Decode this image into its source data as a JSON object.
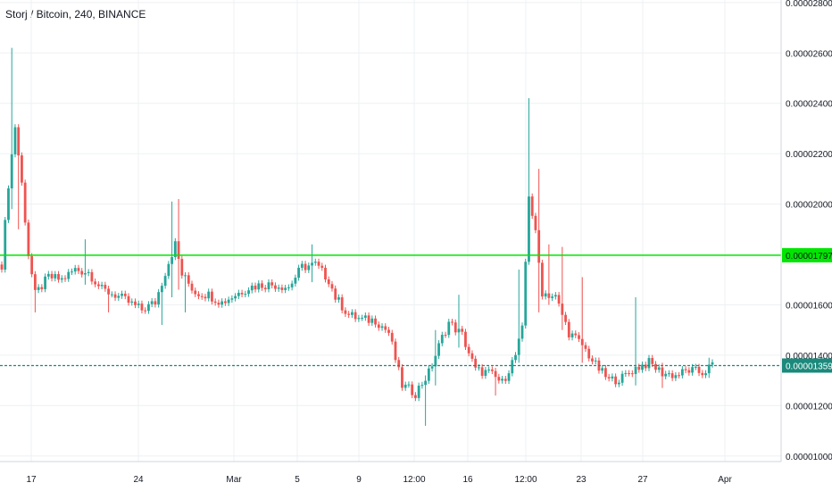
{
  "header": {
    "title": "Storj / Bitcoin, 240, BINANCE"
  },
  "colors": {
    "up": "#26a69a",
    "down": "#ef5350",
    "grid": "#eef0f3",
    "axis_text": "#131722",
    "resistance_line": "#00e600",
    "current_price_line": "#1b8a7c",
    "current_price_bg": "#1b8a7c",
    "resistance_bg": "#00e600"
  },
  "chart_data": {
    "type": "candlestick",
    "title": "Storj / Bitcoin, 240, BINANCE",
    "y_range": [
      9.78e-06,
      2.81e-05
    ],
    "y_ticks": [
      "0.00002800",
      "0.00002600",
      "0.00002400",
      "0.00002200",
      "0.00002000",
      "0.00001600",
      "0.00001400",
      "0.00001200",
      "0.00001000"
    ],
    "x_tick_labels": [
      "17",
      "24",
      "Mar",
      "5",
      "9",
      "12:00",
      "16",
      "12:00",
      "23",
      "27",
      "Apr"
    ],
    "horizontal_lines": [
      {
        "label": "0.00001797",
        "value": 1.797e-05,
        "style": "solid"
      },
      {
        "label": "0.00001359",
        "value": 1.359e-05,
        "style": "dashed"
      }
    ],
    "anchors": [
      [
        0,
        1.76e-05
      ],
      [
        2,
        2.08e-05
      ],
      [
        4,
        2.31e-05
      ],
      [
        6,
        2.08e-05
      ],
      [
        8,
        1.8e-05
      ],
      [
        10,
        1.64e-05
      ],
      [
        14,
        1.71e-05
      ],
      [
        18,
        1.7e-05
      ],
      [
        22,
        1.74e-05
      ],
      [
        26,
        1.73e-05
      ],
      [
        30,
        1.66e-05
      ],
      [
        34,
        1.64e-05
      ],
      [
        38,
        1.61e-05
      ],
      [
        42,
        1.58e-05
      ],
      [
        46,
        1.61e-05
      ],
      [
        50,
        1.77e-05
      ],
      [
        52,
        1.84e-05
      ],
      [
        54,
        1.72e-05
      ],
      [
        58,
        1.65e-05
      ],
      [
        62,
        1.64e-05
      ],
      [
        66,
        1.61e-05
      ],
      [
        70,
        1.64e-05
      ],
      [
        74,
        1.67e-05
      ],
      [
        78,
        1.68e-05
      ],
      [
        82,
        1.68e-05
      ],
      [
        86,
        1.67e-05
      ],
      [
        90,
        1.75e-05
      ],
      [
        94,
        1.76e-05
      ],
      [
        98,
        1.7e-05
      ],
      [
        100,
        1.63e-05
      ],
      [
        104,
        1.56e-05
      ],
      [
        108,
        1.54e-05
      ],
      [
        112,
        1.54e-05
      ],
      [
        116,
        1.49e-05
      ],
      [
        120,
        1.28e-05
      ],
      [
        124,
        1.25e-05
      ],
      [
        128,
        1.33e-05
      ],
      [
        132,
        1.47e-05
      ],
      [
        134,
        1.53e-05
      ],
      [
        138,
        1.48e-05
      ],
      [
        142,
        1.34e-05
      ],
      [
        146,
        1.33e-05
      ],
      [
        150,
        1.29e-05
      ],
      [
        154,
        1.4e-05
      ],
      [
        156,
        1.5e-05
      ],
      [
        158,
        2.04e-05
      ],
      [
        160,
        1.88e-05
      ],
      [
        162,
        1.65e-05
      ],
      [
        166,
        1.63e-05
      ],
      [
        170,
        1.49e-05
      ],
      [
        174,
        1.44e-05
      ],
      [
        178,
        1.36e-05
      ],
      [
        182,
        1.3e-05
      ],
      [
        186,
        1.31e-05
      ],
      [
        190,
        1.35e-05
      ],
      [
        194,
        1.37e-05
      ],
      [
        198,
        1.33e-05
      ],
      [
        202,
        1.32e-05
      ],
      [
        206,
        1.34e-05
      ],
      [
        210,
        1.33e-05
      ],
      [
        213,
        1.36e-05
      ]
    ],
    "spikes": [
      [
        3,
        2.62e-05,
        1.98e-05
      ],
      [
        5,
        2.27e-05,
        1.9e-05
      ],
      [
        10,
        1.7e-05,
        1.57e-05
      ],
      [
        25,
        1.86e-05,
        1.68e-05
      ],
      [
        32,
        1.65e-05,
        1.57e-05
      ],
      [
        48,
        1.55e-05,
        1.52e-05
      ],
      [
        51,
        2.01e-05,
        1.63e-05
      ],
      [
        53,
        2.02e-05,
        1.66e-05
      ],
      [
        55,
        1.7e-05,
        1.57e-05
      ],
      [
        93,
        1.84e-05,
        1.69e-05
      ],
      [
        127,
        1.32e-05,
        1.12e-05
      ],
      [
        130,
        1.5e-05,
        1.28e-05
      ],
      [
        137,
        1.64e-05,
        1.43e-05
      ],
      [
        148,
        1.35e-05,
        1.24e-05
      ],
      [
        155,
        1.74e-05,
        1.37e-05
      ],
      [
        158,
        2.42e-05,
        1.88e-05
      ],
      [
        161,
        2.14e-05,
        1.57e-05
      ],
      [
        164,
        1.84e-05,
        1.6e-05
      ],
      [
        168,
        1.83e-05,
        1.5e-05
      ],
      [
        174,
        1.71e-05,
        1.37e-05
      ],
      [
        190,
        1.63e-05,
        1.28e-05
      ],
      [
        198,
        1.37e-05,
        1.27e-05
      ],
      [
        212,
        1.39e-05,
        1.31e-05
      ]
    ],
    "candle_count": 214
  }
}
